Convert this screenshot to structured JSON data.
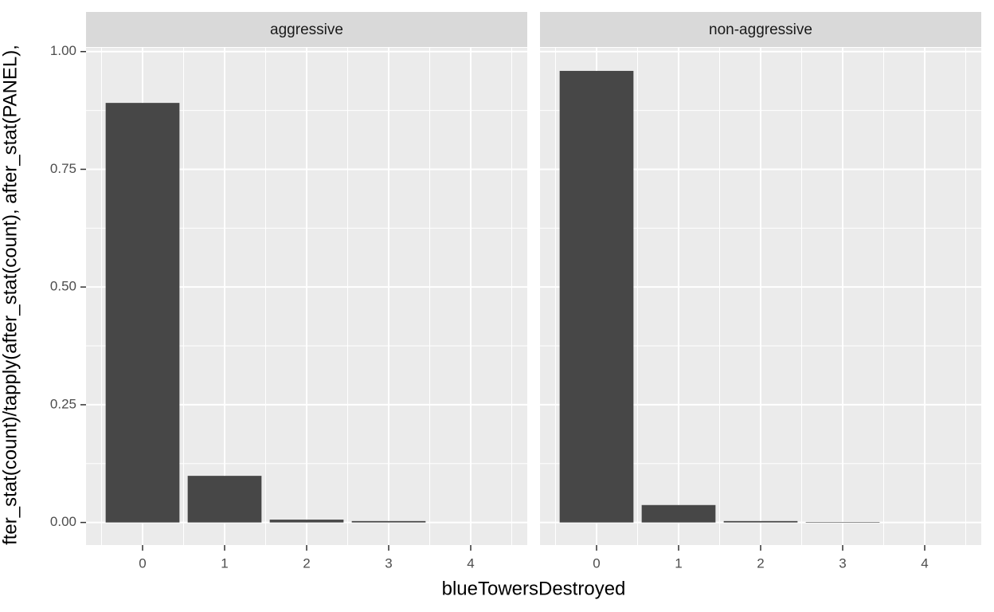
{
  "chart_data": [
    {
      "type": "bar",
      "title": "aggressive",
      "xlabel": "blueTowersDestroyed",
      "ylabel": "fter_stat(count)/tapply(after_stat(count), after_stat(PANEL),",
      "categories": [
        "0",
        "1",
        "2",
        "3",
        "4"
      ],
      "values": [
        0.891,
        0.099,
        0.006,
        0.003,
        0
      ],
      "color": "#474747",
      "ylim": [
        -0.048,
        1.008
      ],
      "yticks": [
        {
          "value": 0,
          "label": "0.00"
        },
        0.25,
        {
          "value": 0.5,
          "label": "0.50"
        },
        0.75,
        {
          "value": 1,
          "label": "1.00"
        }
      ],
      "grid": true
    },
    {
      "type": "bar",
      "title": "non-aggressive",
      "categories": [
        "0",
        "1",
        "2",
        "3",
        "4"
      ],
      "values": [
        0.959,
        0.037,
        0.003,
        0.001,
        0
      ],
      "color": "#474747",
      "ylim": [
        -0.048,
        1.008
      ],
      "yticks": [
        {
          "value": 0,
          "label": "0.00"
        },
        0.25,
        {
          "value": 0.5,
          "label": "0.50"
        },
        0.75,
        {
          "value": 1,
          "label": "1.00"
        }
      ],
      "grid": true
    }
  ]
}
